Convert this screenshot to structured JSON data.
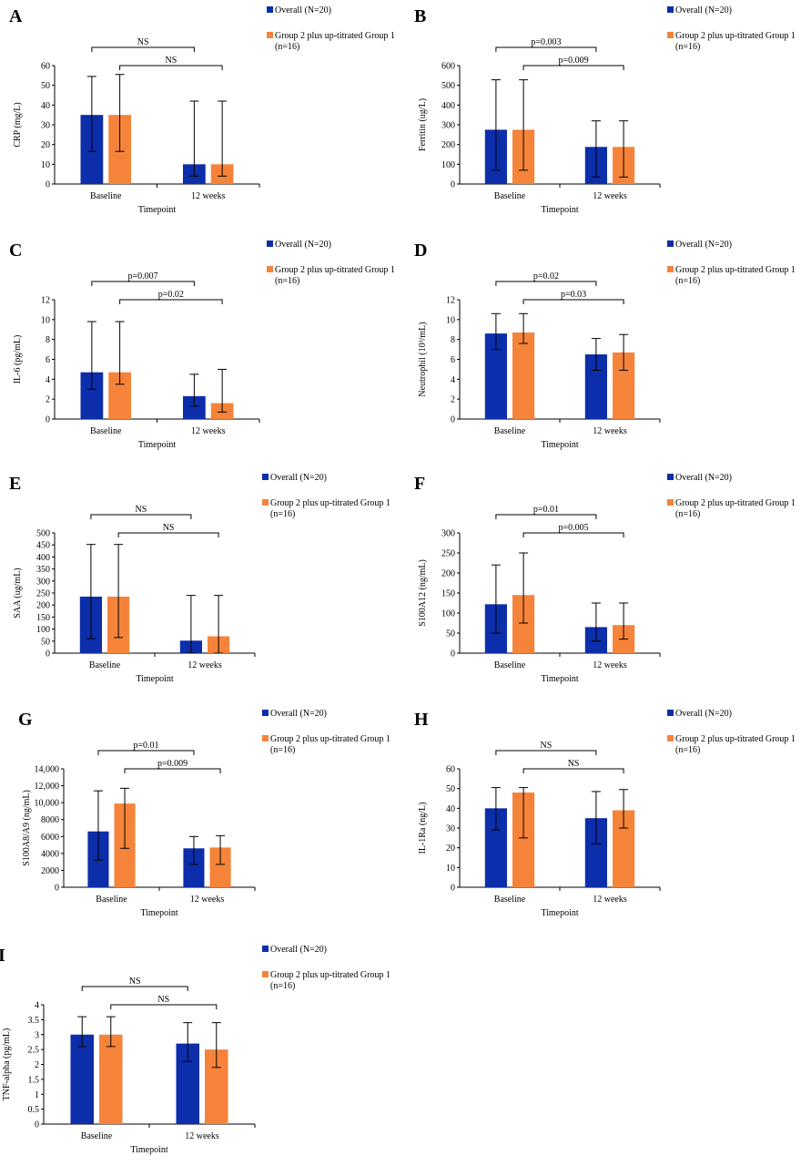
{
  "colors": {
    "overall": "#0d2eaa",
    "group2": "#f5843a"
  },
  "chart_data": [
    {
      "type": "bar",
      "letter": "A",
      "ylabel": "CRP (mg/L)",
      "xlabel": "Timepoint",
      "categories": [
        "Baseline",
        "12 weeks"
      ],
      "ylim": [
        0,
        60
      ],
      "yticks": [
        "0",
        "10",
        "20",
        "30",
        "40",
        "50",
        "60"
      ],
      "series": [
        {
          "name": "Overall (N=20)",
          "values": [
            35,
            10
          ],
          "err_low": [
            16.5,
            4
          ],
          "err_high": [
            54.5,
            42
          ]
        },
        {
          "name": "Group 2 plus up-titrated Group 1 (n=16)",
          "values": [
            35,
            10
          ],
          "err_low": [
            16.5,
            4
          ],
          "err_high": [
            55.5,
            42
          ]
        }
      ],
      "comparisons": [
        {
          "label": "NS"
        },
        {
          "label": "NS"
        }
      ]
    },
    {
      "type": "bar",
      "letter": "B",
      "ylabel": "Ferritin (ug/L)",
      "xlabel": "Timepoint",
      "categories": [
        "Baseline",
        "12 weeks"
      ],
      "ylim": [
        0,
        600
      ],
      "yticks": [
        "0",
        "100",
        "200",
        "300",
        "400",
        "500",
        "600"
      ],
      "series": [
        {
          "name": "Overall (N=20)",
          "values": [
            275,
            188
          ],
          "err_low": [
            70,
            35
          ],
          "err_high": [
            528,
            320
          ]
        },
        {
          "name": "Group 2 plus up-titrated Group 1 (n=16)",
          "values": [
            275,
            188
          ],
          "err_low": [
            70,
            35
          ],
          "err_high": [
            528,
            320
          ]
        }
      ],
      "comparisons": [
        {
          "label": "p=0.003"
        },
        {
          "label": "p=0.009"
        }
      ]
    },
    {
      "type": "bar",
      "letter": "C",
      "ylabel": "IL-6 (pg/mL)",
      "xlabel": "Timepoint",
      "categories": [
        "Baseline",
        "12 weeks"
      ],
      "ylim": [
        0,
        12
      ],
      "yticks": [
        "0",
        "2",
        "4",
        "6",
        "8",
        "10",
        "12"
      ],
      "series": [
        {
          "name": "Overall (N=20)",
          "values": [
            4.7,
            2.3
          ],
          "err_low": [
            3,
            1.3
          ],
          "err_high": [
            9.8,
            4.5
          ]
        },
        {
          "name": "Group 2 plus up-titrated Group 1 (n=16)",
          "values": [
            4.7,
            1.6
          ],
          "err_low": [
            3.5,
            0.7
          ],
          "err_high": [
            9.8,
            5
          ]
        }
      ],
      "comparisons": [
        {
          "label": "p=0.007"
        },
        {
          "label": "p=0.02"
        }
      ]
    },
    {
      "type": "bar",
      "letter": "D",
      "ylabel": "Neutrophil (10³/mL)",
      "xlabel": "Timepoint",
      "categories": [
        "Baseline",
        "12 weeks"
      ],
      "ylim": [
        0,
        12
      ],
      "yticks": [
        "0",
        "2",
        "4",
        "6",
        "8",
        "10",
        "12"
      ],
      "series": [
        {
          "name": "Overall (N=20)",
          "values": [
            8.6,
            6.5
          ],
          "err_low": [
            7,
            4.9
          ],
          "err_high": [
            10.6,
            8.1
          ]
        },
        {
          "name": "Group 2 plus up-titrated Group 1 (n=16)",
          "values": [
            8.7,
            6.7
          ],
          "err_low": [
            7.6,
            4.9
          ],
          "err_high": [
            10.6,
            8.5
          ]
        }
      ],
      "comparisons": [
        {
          "label": "p=0.02"
        },
        {
          "label": "p=0.03"
        }
      ]
    },
    {
      "type": "bar",
      "letter": "E",
      "ylabel": "SAA (ug/mL)",
      "xlabel": "Timepoint",
      "categories": [
        "Baseline",
        "12 weeks"
      ],
      "ylim": [
        0,
        500
      ],
      "yticks": [
        "0",
        "50",
        "100",
        "150",
        "200",
        "250",
        "300",
        "350",
        "400",
        "450",
        "500"
      ],
      "series": [
        {
          "name": "Overall (N=20)",
          "values": [
            235,
            52
          ],
          "err_low": [
            60,
            0
          ],
          "err_high": [
            452,
            240
          ]
        },
        {
          "name": "Group 2 plus up-titrated Group 1 (n=16)",
          "values": [
            235,
            70
          ],
          "err_low": [
            65,
            0
          ],
          "err_high": [
            452,
            240
          ]
        }
      ],
      "comparisons": [
        {
          "label": "NS"
        },
        {
          "label": "NS"
        }
      ]
    },
    {
      "type": "bar",
      "letter": "F",
      "ylabel": "S100A12 (ng/mL)",
      "xlabel": "Timepoint",
      "categories": [
        "Baseline",
        "12 weeks"
      ],
      "ylim": [
        0,
        300
      ],
      "yticks": [
        "0",
        "50",
        "100",
        "150",
        "200",
        "250",
        "300"
      ],
      "series": [
        {
          "name": "Overall (N=20)",
          "values": [
            122,
            65
          ],
          "err_low": [
            50,
            30
          ],
          "err_high": [
            220,
            125
          ]
        },
        {
          "name": "Group 2 plus up-titrated Group 1 (n=16)",
          "values": [
            145,
            70
          ],
          "err_low": [
            75,
            35
          ],
          "err_high": [
            250,
            125
          ]
        }
      ],
      "comparisons": [
        {
          "label": "p=0.01"
        },
        {
          "label": "p=0.005"
        }
      ]
    },
    {
      "type": "bar",
      "letter": "G",
      "ylabel": "S100A8/A9 (ng/mL)",
      "xlabel": "Timepoint",
      "categories": [
        "Baseline",
        "12 weeks"
      ],
      "ylim": [
        0,
        14000
      ],
      "yticks": [
        "0",
        "2000",
        "4000",
        "6000",
        "8000",
        "10,000",
        "12,000",
        "14,000"
      ],
      "series": [
        {
          "name": "Overall (N=20)",
          "values": [
            6600,
            4600
          ],
          "err_low": [
            3200,
            2700
          ],
          "err_high": [
            11400,
            6000
          ]
        },
        {
          "name": "Group 2 plus up-titrated Group 1 (n=16)",
          "values": [
            9900,
            4700
          ],
          "err_low": [
            4600,
            2700
          ],
          "err_high": [
            11700,
            6100
          ]
        }
      ],
      "comparisons": [
        {
          "label": "p=0.01"
        },
        {
          "label": "p=0.009"
        }
      ]
    },
    {
      "type": "bar",
      "letter": "H",
      "ylabel": "IL-1Ra (ng/L)",
      "xlabel": "Timepoint",
      "categories": [
        "Baseline",
        "12 weeks"
      ],
      "ylim": [
        0,
        60
      ],
      "yticks": [
        "0",
        "10",
        "20",
        "30",
        "40",
        "50",
        "60"
      ],
      "series": [
        {
          "name": "Overall (N=20)",
          "values": [
            40,
            35
          ],
          "err_low": [
            29,
            22
          ],
          "err_high": [
            50.5,
            48.5
          ]
        },
        {
          "name": "Group 2 plus up-titrated Group 1 (n=16)",
          "values": [
            48,
            39
          ],
          "err_low": [
            25,
            30
          ],
          "err_high": [
            50.5,
            49.5
          ]
        }
      ],
      "comparisons": [
        {
          "label": "NS"
        },
        {
          "label": "NS"
        }
      ]
    },
    {
      "type": "bar",
      "letter": "I",
      "ylabel": "TNF-alpha (pg/mL)",
      "xlabel": "Timepoint",
      "categories": [
        "Baseline",
        "12 weeks"
      ],
      "ylim": [
        0,
        4
      ],
      "yticks": [
        "0",
        "0.5",
        "1",
        "1.5",
        "2",
        "2.5",
        "3",
        "3.5",
        "4"
      ],
      "series": [
        {
          "name": "Overall (N=20)",
          "values": [
            3.0,
            2.7
          ],
          "err_low": [
            2.6,
            2.1
          ],
          "err_high": [
            3.6,
            3.4
          ]
        },
        {
          "name": "Group 2 plus up-titrated Group 1 (n=16)",
          "values": [
            3.0,
            2.5
          ],
          "err_low": [
            2.6,
            1.9
          ],
          "err_high": [
            3.6,
            3.4
          ]
        }
      ],
      "comparisons": [
        {
          "label": "NS"
        },
        {
          "label": "NS"
        }
      ]
    }
  ]
}
